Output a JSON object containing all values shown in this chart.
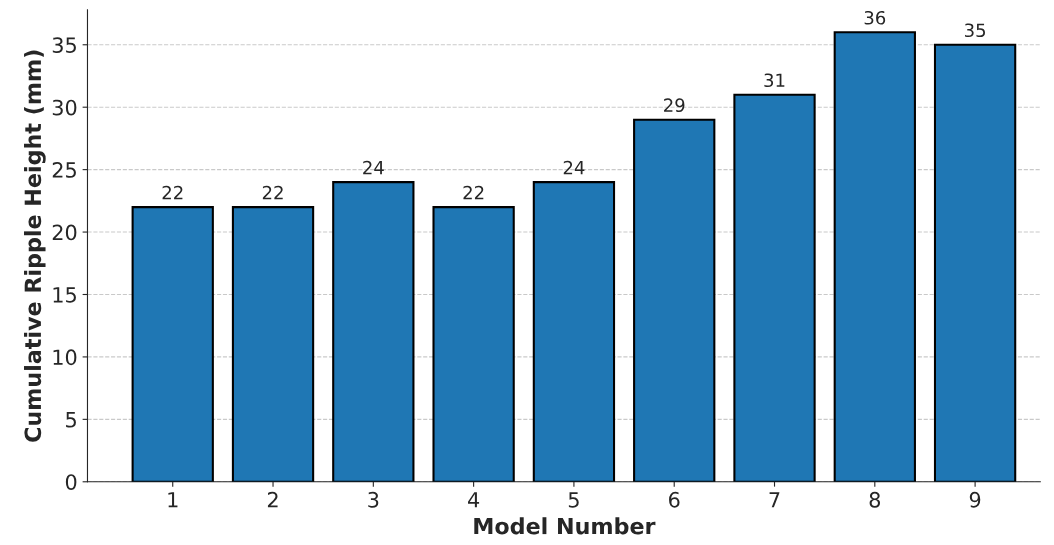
{
  "chart_data": {
    "type": "bar",
    "xlabel": "Model Number",
    "ylabel": "Cumulative Ripple Height (mm)",
    "categories": [
      "1",
      "2",
      "3",
      "4",
      "5",
      "6",
      "7",
      "8",
      "9"
    ],
    "values": [
      22,
      22,
      24,
      22,
      24,
      29,
      31,
      36,
      35
    ],
    "color": "#1f77b4",
    "ylim": [
      0,
      37.8
    ],
    "yticks": [
      0,
      5,
      10,
      15,
      20,
      25,
      30,
      35
    ],
    "grid": "y",
    "data_labels": true
  }
}
